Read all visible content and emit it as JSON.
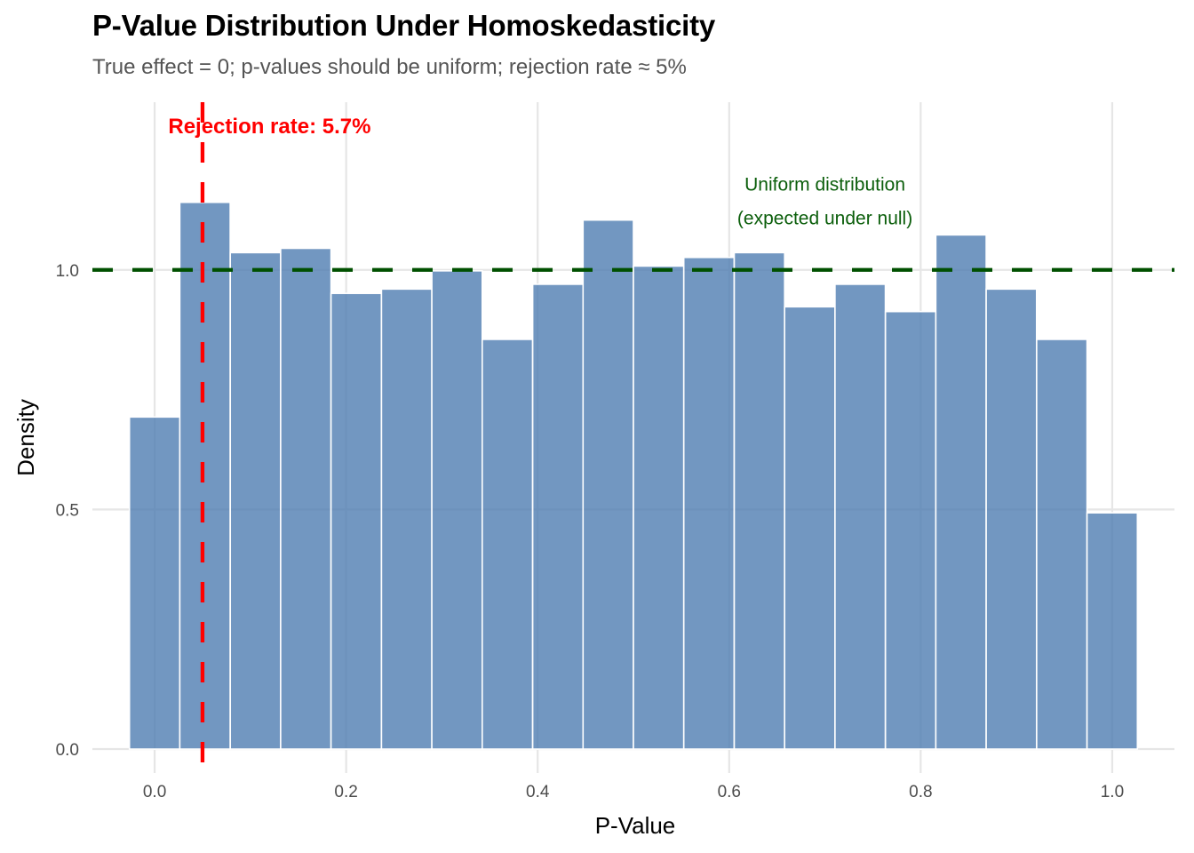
{
  "chart_data": {
    "type": "bar",
    "subtype": "histogram",
    "title": "P-Value Distribution Under Homoskedasticity",
    "subtitle": "True effect = 0; p-values should be uniform; rejection rate ≈ 5%",
    "xlabel": "P-Value",
    "ylabel": "Density",
    "xlim": [
      -0.065,
      1.065
    ],
    "ylim": [
      -0.05,
      1.35
    ],
    "x_ticks": [
      0.0,
      0.2,
      0.4,
      0.6,
      0.8,
      1.0
    ],
    "x_tick_labels": [
      "0.0",
      "0.2",
      "0.4",
      "0.6",
      "0.8",
      "1.0"
    ],
    "y_ticks": [
      0.0,
      0.5,
      1.0
    ],
    "y_tick_labels": [
      "0.0",
      "0.5",
      "1.0"
    ],
    "grid": true,
    "bins": 20,
    "bin_centers": [
      0.0,
      0.0526,
      0.1053,
      0.1579,
      0.2105,
      0.2632,
      0.3158,
      0.3684,
      0.4211,
      0.4737,
      0.5263,
      0.5789,
      0.6316,
      0.6842,
      0.7368,
      0.7895,
      0.8421,
      0.8947,
      0.9474,
      1.0
    ],
    "bin_width": 0.0526,
    "values": [
      0.693,
      1.141,
      1.036,
      1.045,
      0.951,
      0.96,
      0.998,
      0.855,
      0.97,
      1.104,
      1.008,
      1.026,
      1.036,
      0.923,
      0.97,
      0.913,
      1.073,
      0.96,
      0.855,
      0.493
    ],
    "bar_color": "#4a7ab0",
    "reference_lines": [
      {
        "orientation": "vertical",
        "x": 0.05,
        "color": "#ff0000",
        "style": "dashed"
      },
      {
        "orientation": "horizontal",
        "y": 1.0,
        "color": "#005000",
        "style": "dashed"
      }
    ],
    "annotations": [
      {
        "text": "Rejection rate: 5.7%",
        "x": 0.12,
        "y": 1.3,
        "color": "#ff0000",
        "bold": true
      },
      {
        "text": "Uniform distribution",
        "x": 0.7,
        "y": 1.18,
        "color": "#0b5e0b",
        "bold": false
      },
      {
        "text": "(expected under null)",
        "x": 0.7,
        "y": 1.11,
        "color": "#0b5e0b",
        "bold": false
      }
    ],
    "legend": "none"
  }
}
